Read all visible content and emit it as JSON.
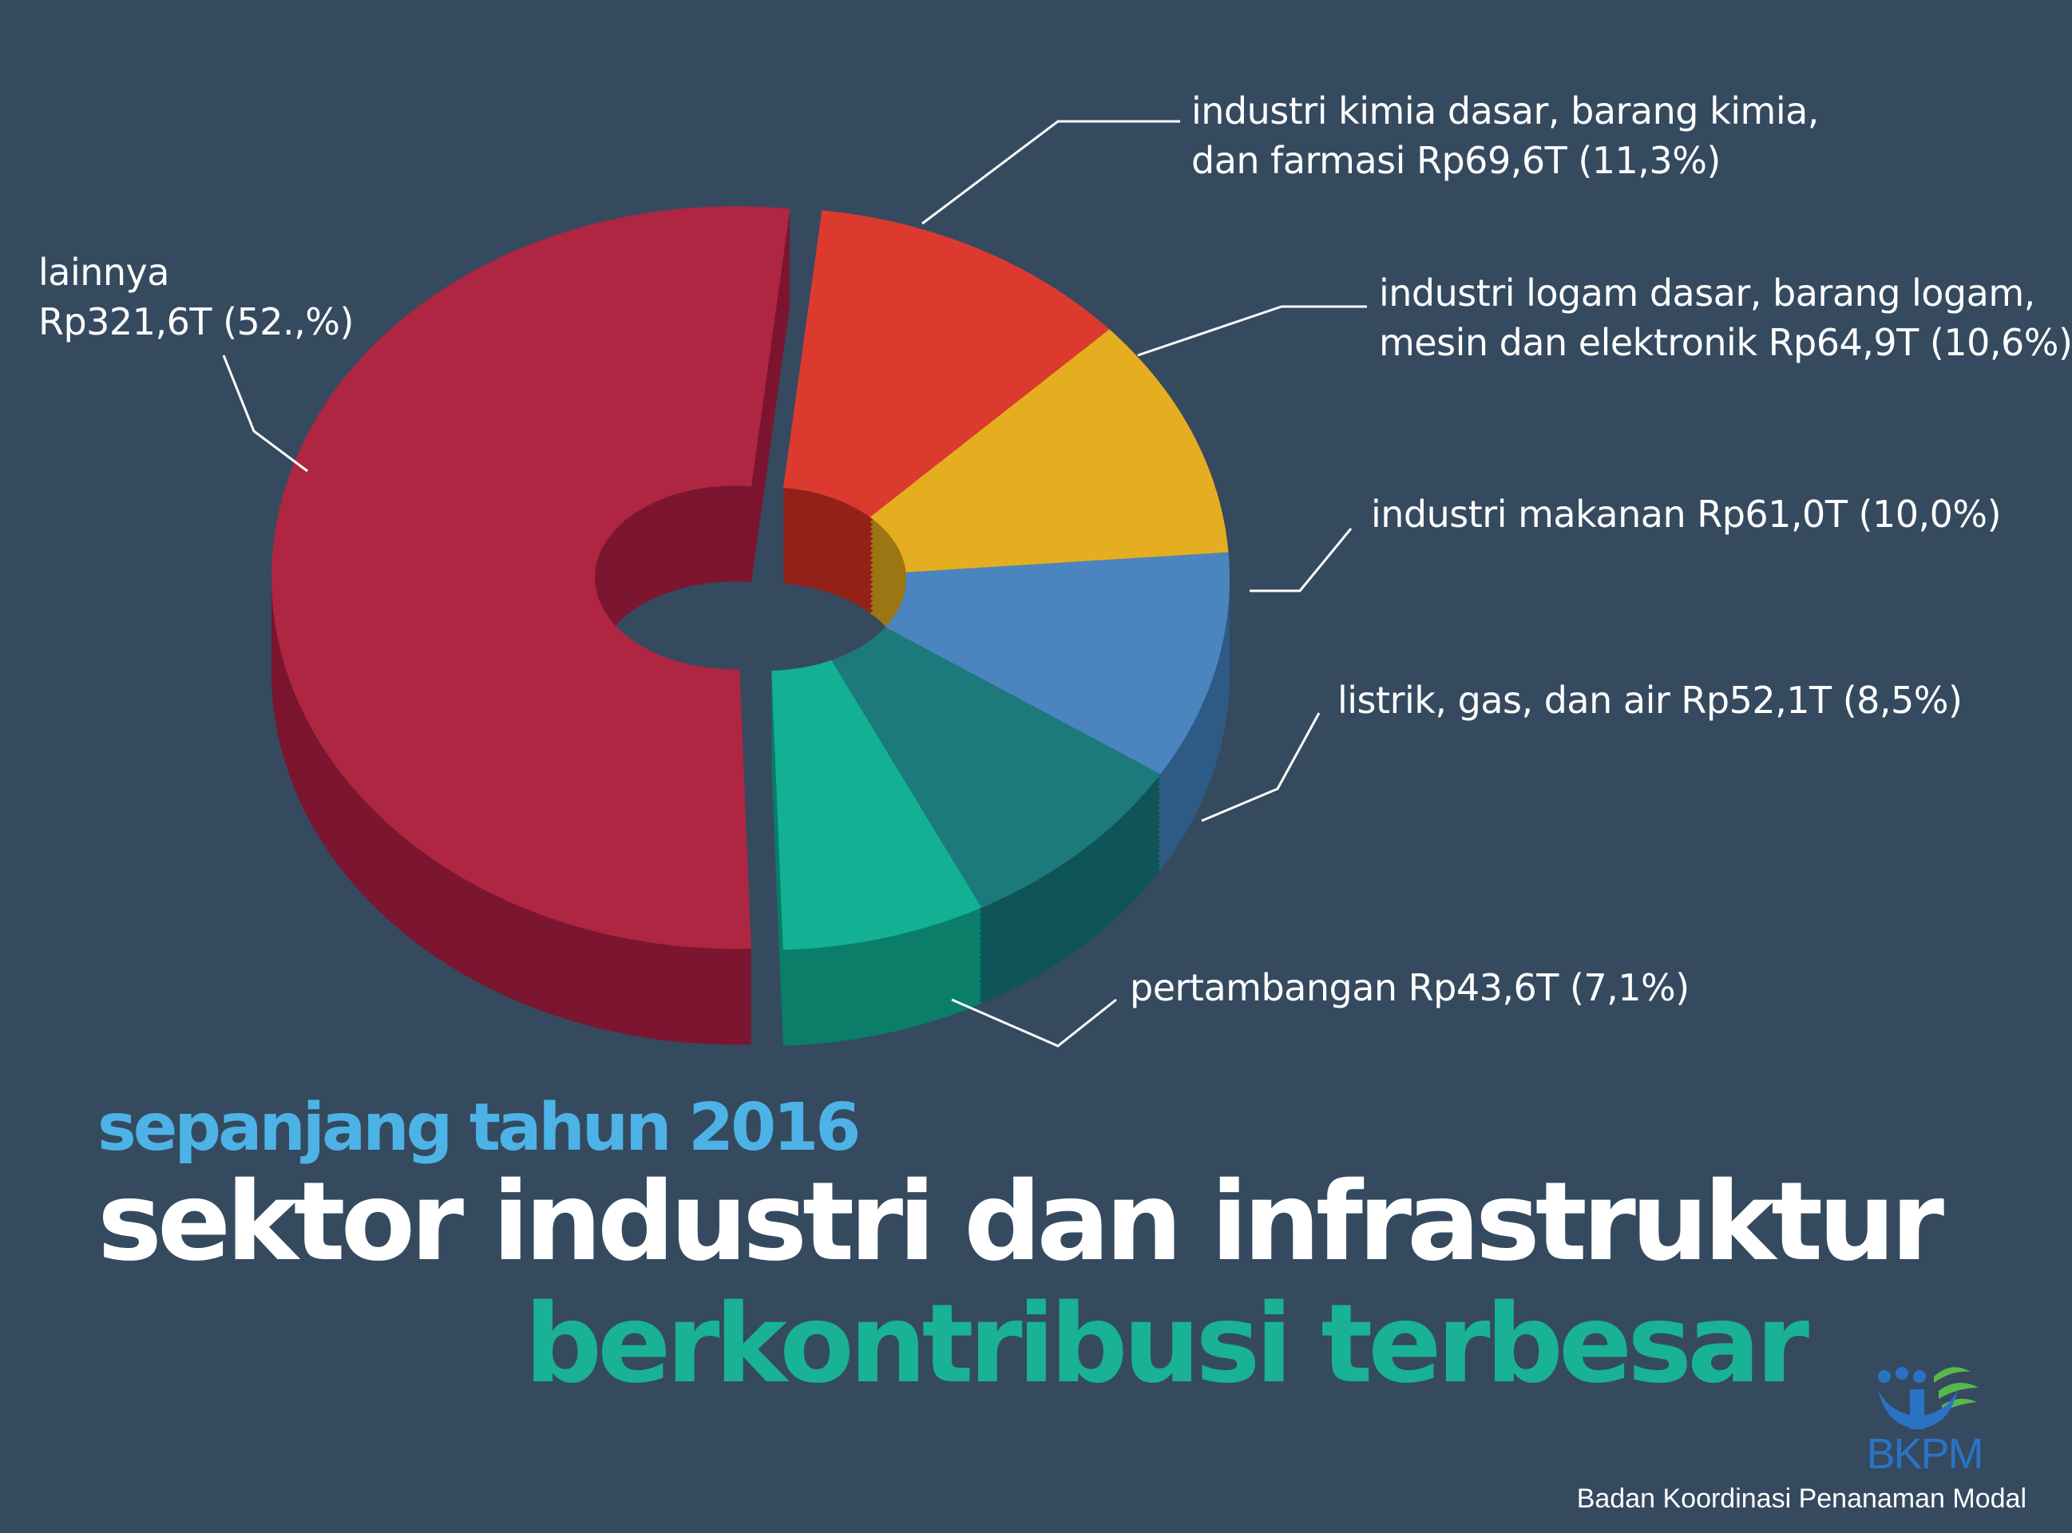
{
  "colors": {
    "background": "#354a5f",
    "subtitle": "#4db3e6",
    "title": "#ffffff",
    "accent_title": "#19b294",
    "logo_blue": "#2a73c4",
    "logo_green": "#57b94a"
  },
  "chart_data": {
    "type": "pie",
    "style": "3d-donut",
    "currency": "Rp",
    "unit": "T",
    "slices": [
      {
        "line1": "industri kimia dasar, barang kimia,",
        "line2": "dan farmasi Rp69,6T (11,3%)",
        "value": 69.6,
        "percent": 11.3,
        "color": "#dc3a2f",
        "side": "#922219"
      },
      {
        "line1": "industri logam dasar, barang logam,",
        "line2": "mesin dan elektronik Rp64,9T (10,6%)",
        "value": 64.9,
        "percent": 10.6,
        "color": "#e5ae20",
        "side": "#9b7612"
      },
      {
        "line1": "industri makanan Rp61,0T (10,0%)",
        "line2": "",
        "value": 61.0,
        "percent": 10.0,
        "color": "#4a85c0",
        "side": "#2e5a86"
      },
      {
        "line1": "listrik, gas, dan air Rp52,1T (8,5%)",
        "line2": "",
        "value": 52.1,
        "percent": 8.5,
        "color": "#1d7a7c",
        "side": "#0f5457"
      },
      {
        "line1": "pertambangan Rp43,6T (7,1%)",
        "line2": "",
        "value": 43.6,
        "percent": 7.1,
        "color": "#14b094",
        "side": "#0a7e68"
      },
      {
        "line1": "lainnya",
        "line2": "Rp321,6T (52.,%)",
        "value": 321.6,
        "percent": 52.5,
        "color": "#ae2641",
        "side": "#7c1530"
      }
    ]
  },
  "headline": {
    "subtitle": "sepanjang tahun 2016",
    "title": "sektor industri dan infrastruktur",
    "title_accent": "berkontribusi terbesar"
  },
  "logo": {
    "text": "BKPM",
    "icon": "bkpm-logo-icon"
  },
  "footer": {
    "agency": "Badan Koordinasi Penanaman Modal"
  }
}
